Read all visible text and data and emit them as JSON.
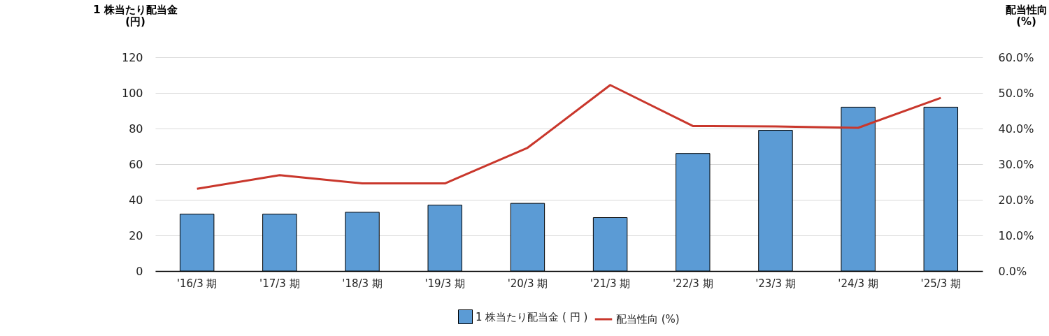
{
  "chart_data": {
    "type": "bar",
    "ylabel": "1 株当たり配当金\n(円)",
    "y2label": "配当性向\n(%)",
    "categories": [
      "'16/3 期",
      "'17/3 期",
      "'18/3 期",
      "'19/3 期",
      "'20/3 期",
      "'21/3 期",
      "'22/3 期",
      "'23/3 期",
      "'24/3 期",
      "'25/3 期"
    ],
    "series": [
      {
        "name": "1 株当たり配当金 ( 円 )",
        "color": "#5b9bd5",
        "values": [
          32,
          32,
          33,
          37,
          38,
          30,
          66,
          79,
          92,
          92
        ]
      },
      {
        "name": "配当性向 (%)",
        "type": "line",
        "axis": "y2",
        "color": "#c9372c",
        "values": [
          23.1,
          26.9,
          24.6,
          24.6,
          34.6,
          52.2,
          40.7,
          40.6,
          40.2,
          48.6
        ]
      }
    ],
    "ylim": [
      0,
      120
    ],
    "yticks": [
      0,
      20,
      40,
      60,
      80,
      100,
      120
    ],
    "y2lim": [
      0,
      60
    ],
    "y2ticks": [
      {
        "value": 0,
        "label": "0.0%"
      },
      {
        "value": 10,
        "label": "10.0%"
      },
      {
        "value": 20,
        "label": "20.0%"
      },
      {
        "value": 30,
        "label": "30.0%"
      },
      {
        "value": 40,
        "label": "40.0%"
      },
      {
        "value": 50,
        "label": "50.0%"
      },
      {
        "value": 60,
        "label": "60.0%"
      }
    ],
    "grid": "y",
    "legend": "bottom"
  }
}
